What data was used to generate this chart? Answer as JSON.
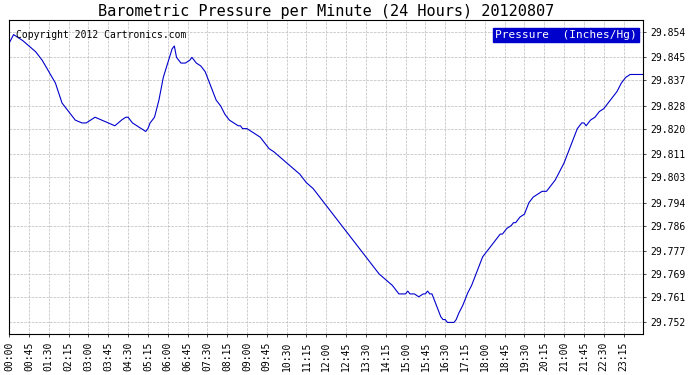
{
  "title": "Barometric Pressure per Minute (24 Hours) 20120807",
  "copyright": "Copyright 2012 Cartronics.com",
  "legend_label": "Pressure  (Inches/Hg)",
  "line_color": "#0000cc",
  "background_color": "#ffffff",
  "plot_bg_color": "#ffffff",
  "legend_bg_color": "#0000cc",
  "legend_text_color": "#ffffff",
  "grid_color": "#bbbbbb",
  "yticks": [
    29.752,
    29.761,
    29.769,
    29.777,
    29.786,
    29.794,
    29.803,
    29.811,
    29.82,
    29.828,
    29.837,
    29.845,
    29.854
  ],
  "ylim": [
    29.748,
    29.858
  ],
  "x_labels": [
    "00:00",
    "00:45",
    "01:30",
    "02:15",
    "03:00",
    "03:45",
    "04:30",
    "05:15",
    "06:00",
    "06:45",
    "07:30",
    "08:15",
    "09:00",
    "09:45",
    "10:30",
    "11:15",
    "12:00",
    "12:45",
    "13:30",
    "14:15",
    "15:00",
    "15:45",
    "16:30",
    "17:15",
    "18:00",
    "18:45",
    "19:30",
    "20:15",
    "21:00",
    "21:45",
    "22:30",
    "23:15"
  ],
  "title_fontsize": 11,
  "copyright_fontsize": 7,
  "tick_fontsize": 7,
  "legend_fontsize": 8,
  "keypoints": [
    [
      0,
      29.85
    ],
    [
      10,
      29.853
    ],
    [
      20,
      29.852
    ],
    [
      30,
      29.851
    ],
    [
      45,
      29.849
    ],
    [
      60,
      29.847
    ],
    [
      75,
      29.844
    ],
    [
      90,
      29.84
    ],
    [
      105,
      29.836
    ],
    [
      120,
      29.829
    ],
    [
      135,
      29.826
    ],
    [
      150,
      29.823
    ],
    [
      165,
      29.822
    ],
    [
      175,
      29.822
    ],
    [
      185,
      29.823
    ],
    [
      195,
      29.824
    ],
    [
      210,
      29.823
    ],
    [
      225,
      29.822
    ],
    [
      240,
      29.821
    ],
    [
      255,
      29.823
    ],
    [
      265,
      29.824
    ],
    [
      270,
      29.824
    ],
    [
      280,
      29.822
    ],
    [
      290,
      29.821
    ],
    [
      300,
      29.82
    ],
    [
      310,
      29.819
    ],
    [
      315,
      29.82
    ],
    [
      320,
      29.822
    ],
    [
      330,
      29.824
    ],
    [
      340,
      29.83
    ],
    [
      350,
      29.838
    ],
    [
      360,
      29.843
    ],
    [
      370,
      29.848
    ],
    [
      375,
      29.849
    ],
    [
      380,
      29.845
    ],
    [
      390,
      29.843
    ],
    [
      400,
      29.843
    ],
    [
      410,
      29.844
    ],
    [
      415,
      29.845
    ],
    [
      425,
      29.843
    ],
    [
      435,
      29.842
    ],
    [
      440,
      29.841
    ],
    [
      445,
      29.84
    ],
    [
      450,
      29.838
    ],
    [
      460,
      29.834
    ],
    [
      465,
      29.832
    ],
    [
      470,
      29.83
    ],
    [
      480,
      29.828
    ],
    [
      490,
      29.825
    ],
    [
      495,
      29.824
    ],
    [
      500,
      29.823
    ],
    [
      510,
      29.822
    ],
    [
      520,
      29.821
    ],
    [
      525,
      29.821
    ],
    [
      530,
      29.82
    ],
    [
      540,
      29.82
    ],
    [
      550,
      29.819
    ],
    [
      560,
      29.818
    ],
    [
      570,
      29.817
    ],
    [
      580,
      29.815
    ],
    [
      590,
      29.813
    ],
    [
      600,
      29.812
    ],
    [
      615,
      29.81
    ],
    [
      630,
      29.808
    ],
    [
      645,
      29.806
    ],
    [
      660,
      29.804
    ],
    [
      675,
      29.801
    ],
    [
      690,
      29.799
    ],
    [
      705,
      29.796
    ],
    [
      720,
      29.793
    ],
    [
      735,
      29.79
    ],
    [
      750,
      29.787
    ],
    [
      765,
      29.784
    ],
    [
      780,
      29.781
    ],
    [
      795,
      29.778
    ],
    [
      810,
      29.775
    ],
    [
      825,
      29.772
    ],
    [
      840,
      29.769
    ],
    [
      855,
      29.767
    ],
    [
      870,
      29.765
    ],
    [
      880,
      29.763
    ],
    [
      885,
      29.762
    ],
    [
      890,
      29.762
    ],
    [
      895,
      29.762
    ],
    [
      900,
      29.762
    ],
    [
      905,
      29.763
    ],
    [
      910,
      29.762
    ],
    [
      915,
      29.762
    ],
    [
      920,
      29.762
    ],
    [
      930,
      29.761
    ],
    [
      940,
      29.762
    ],
    [
      945,
      29.762
    ],
    [
      950,
      29.763
    ],
    [
      955,
      29.762
    ],
    [
      960,
      29.762
    ],
    [
      965,
      29.76
    ],
    [
      970,
      29.758
    ],
    [
      975,
      29.756
    ],
    [
      980,
      29.754
    ],
    [
      985,
      29.753
    ],
    [
      990,
      29.753
    ],
    [
      995,
      29.752
    ],
    [
      1000,
      29.752
    ],
    [
      1005,
      29.752
    ],
    [
      1010,
      29.752
    ],
    [
      1015,
      29.753
    ],
    [
      1020,
      29.755
    ],
    [
      1030,
      29.758
    ],
    [
      1040,
      29.762
    ],
    [
      1050,
      29.765
    ],
    [
      1060,
      29.769
    ],
    [
      1065,
      29.771
    ],
    [
      1070,
      29.773
    ],
    [
      1075,
      29.775
    ],
    [
      1080,
      29.776
    ],
    [
      1090,
      29.778
    ],
    [
      1100,
      29.78
    ],
    [
      1110,
      29.782
    ],
    [
      1115,
      29.783
    ],
    [
      1120,
      29.783
    ],
    [
      1125,
      29.784
    ],
    [
      1130,
      29.785
    ],
    [
      1140,
      29.786
    ],
    [
      1145,
      29.787
    ],
    [
      1150,
      29.787
    ],
    [
      1155,
      29.788
    ],
    [
      1160,
      29.789
    ],
    [
      1170,
      29.79
    ],
    [
      1180,
      29.794
    ],
    [
      1190,
      29.796
    ],
    [
      1200,
      29.797
    ],
    [
      1210,
      29.798
    ],
    [
      1215,
      29.798
    ],
    [
      1220,
      29.798
    ],
    [
      1225,
      29.799
    ],
    [
      1230,
      29.8
    ],
    [
      1240,
      29.802
    ],
    [
      1250,
      29.805
    ],
    [
      1260,
      29.808
    ],
    [
      1270,
      29.812
    ],
    [
      1280,
      29.816
    ],
    [
      1290,
      29.82
    ],
    [
      1300,
      29.822
    ],
    [
      1305,
      29.822
    ],
    [
      1310,
      29.821
    ],
    [
      1315,
      29.822
    ],
    [
      1320,
      29.823
    ],
    [
      1330,
      29.824
    ],
    [
      1340,
      29.826
    ],
    [
      1350,
      29.827
    ],
    [
      1360,
      29.829
    ],
    [
      1370,
      29.831
    ],
    [
      1380,
      29.833
    ],
    [
      1390,
      29.836
    ],
    [
      1400,
      29.838
    ],
    [
      1410,
      29.839
    ],
    [
      1420,
      29.839
    ],
    [
      1430,
      29.839
    ],
    [
      1439,
      29.839
    ]
  ]
}
